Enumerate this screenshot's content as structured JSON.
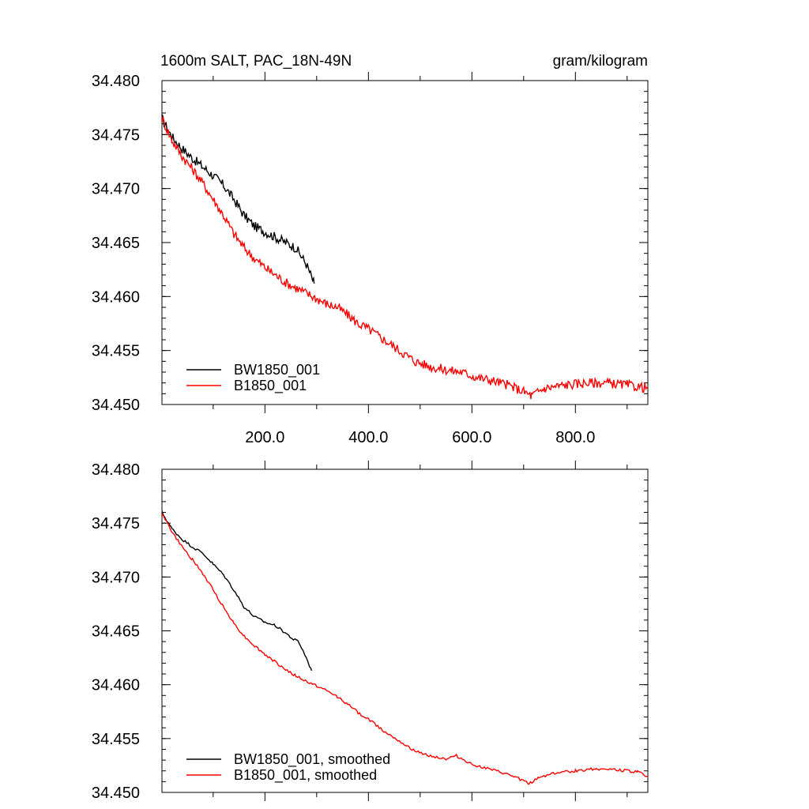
{
  "figure": {
    "title_left": "1600m SALT, PAC_18N-49N",
    "title_right": "gram/kilogram"
  },
  "chart_data": [
    {
      "type": "line",
      "title": "1600m SALT, PAC_18N-49N",
      "units": "gram/kilogram",
      "xlim": [
        1,
        940
      ],
      "ylim": [
        34.45,
        34.48
      ],
      "yticks": [
        34.45,
        34.455,
        34.46,
        34.465,
        34.47,
        34.475,
        34.48
      ],
      "ytick_labels": [
        "34.450",
        "34.455",
        "34.460",
        "34.465",
        "34.470",
        "34.475",
        "34.480"
      ],
      "xticks": [
        200,
        400,
        600,
        800
      ],
      "xtick_labels": [
        "200.0",
        "400.0",
        "600.0",
        "800.0"
      ],
      "legend_position": "bottom-left",
      "series": [
        {
          "name": "BW1850_001",
          "color": "#000000",
          "x": [
            1,
            20,
            40,
            60,
            80,
            100,
            120,
            140,
            160,
            180,
            200,
            220,
            240,
            260,
            280,
            295
          ],
          "y": [
            34.4765,
            34.4748,
            34.4737,
            34.4728,
            34.472,
            34.4712,
            34.4703,
            34.469,
            34.4675,
            34.4665,
            34.466,
            34.4655,
            34.465,
            34.4645,
            34.463,
            34.4612
          ]
        },
        {
          "name": "B1850_001",
          "color": "#ff0000",
          "x": [
            1,
            20,
            40,
            60,
            80,
            100,
            120,
            140,
            160,
            180,
            200,
            220,
            240,
            260,
            280,
            300,
            320,
            340,
            360,
            380,
            400,
            430,
            460,
            490,
            520,
            550,
            580,
            610,
            640,
            670,
            700,
            715,
            740,
            780,
            820,
            860,
            900,
            940
          ],
          "y": [
            34.4765,
            34.4745,
            34.473,
            34.4718,
            34.4705,
            34.469,
            34.4675,
            34.4658,
            34.4645,
            34.4635,
            34.4627,
            34.462,
            34.4613,
            34.4608,
            34.4603,
            34.4598,
            34.4593,
            34.459,
            34.4583,
            34.4575,
            34.457,
            34.456,
            34.455,
            34.454,
            34.4535,
            34.4532,
            34.453,
            34.4525,
            34.4522,
            34.4518,
            34.4512,
            34.4508,
            34.4515,
            34.4518,
            34.452,
            34.452,
            34.4518,
            34.4515
          ]
        }
      ]
    },
    {
      "type": "line",
      "title": "",
      "xlim": [
        1,
        940
      ],
      "ylim": [
        34.45,
        34.48
      ],
      "yticks": [
        34.45,
        34.455,
        34.46,
        34.465,
        34.47,
        34.475,
        34.48
      ],
      "ytick_labels": [
        "34.450",
        "34.455",
        "34.460",
        "34.465",
        "34.470",
        "34.475",
        "34.480"
      ],
      "xticks": [
        200,
        400,
        600,
        800
      ],
      "xtick_labels": [],
      "legend_position": "bottom-left",
      "series": [
        {
          "name": "BW1850_001, smoothed",
          "color": "#000000",
          "x": [
            1,
            20,
            40,
            60,
            80,
            100,
            120,
            140,
            160,
            180,
            200,
            220,
            240,
            255,
            265,
            280,
            290
          ],
          "y": [
            34.476,
            34.4745,
            34.4735,
            34.4728,
            34.4722,
            34.4712,
            34.4702,
            34.4688,
            34.4672,
            34.4663,
            34.4658,
            34.4655,
            34.4648,
            34.4642,
            34.464,
            34.4625,
            34.4613
          ]
        },
        {
          "name": "B1850_001, smoothed",
          "color": "#ff0000",
          "x": [
            1,
            20,
            40,
            60,
            80,
            100,
            120,
            140,
            160,
            180,
            200,
            220,
            240,
            260,
            280,
            300,
            320,
            340,
            360,
            380,
            400,
            430,
            460,
            490,
            520,
            550,
            570,
            600,
            630,
            660,
            690,
            710,
            730,
            760,
            800,
            840,
            880,
            920,
            940
          ],
          "y": [
            34.476,
            34.4742,
            34.4728,
            34.4716,
            34.4703,
            34.4688,
            34.4672,
            34.4657,
            34.4645,
            34.4636,
            34.4628,
            34.4621,
            34.4614,
            34.4608,
            34.4603,
            34.4599,
            34.4594,
            34.4589,
            34.4582,
            34.4574,
            34.4568,
            34.4557,
            34.4548,
            34.4538,
            34.4534,
            34.4531,
            34.4534,
            34.4526,
            34.4522,
            34.4518,
            34.4513,
            34.4508,
            34.4514,
            34.4518,
            34.452,
            34.4522,
            34.4521,
            34.4519,
            34.4515
          ]
        }
      ]
    }
  ]
}
